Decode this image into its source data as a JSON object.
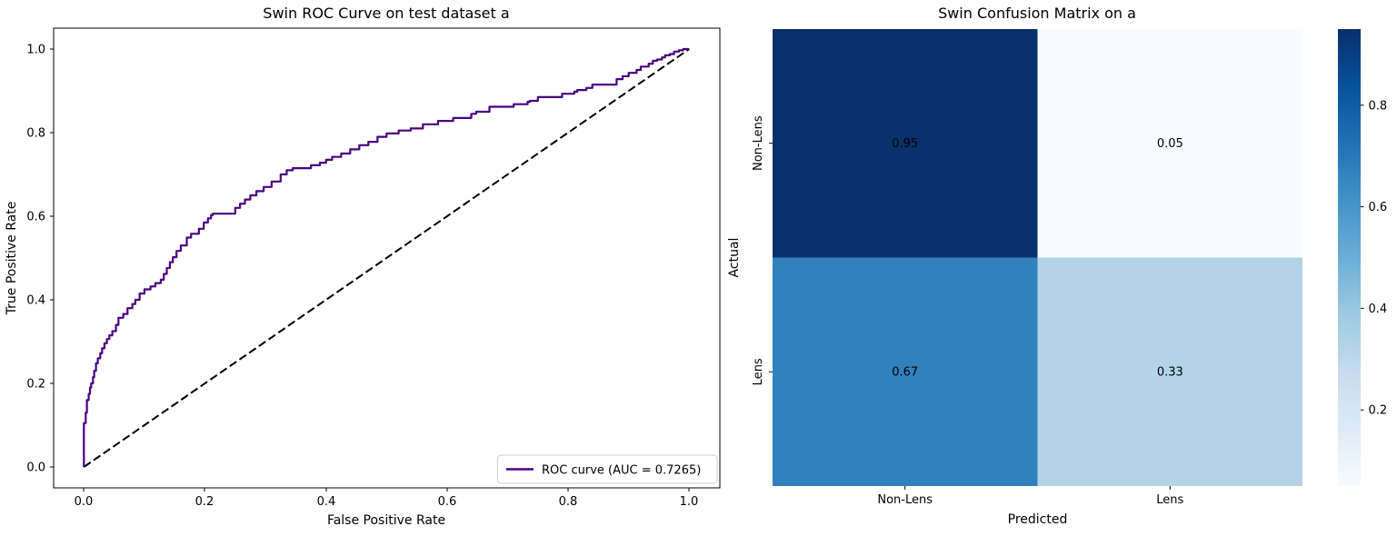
{
  "figure": {
    "background": "#ffffff"
  },
  "roc": {
    "title": "Swin ROC Curve on test dataset a",
    "xlabel": "False Positive Rate",
    "ylabel": "True Positive Rate",
    "x_tick_labels": [
      "0.0",
      "0.2",
      "0.4",
      "0.6",
      "0.8",
      "1.0"
    ],
    "y_tick_labels": [
      "0.0",
      "0.2",
      "0.4",
      "0.6",
      "0.8",
      "1.0"
    ],
    "legend_label": "ROC curve (AUC = 0.7265)",
    "line_color": "#4B0082",
    "diagonal_color": "#000000",
    "legend_border_color": "#cccccc"
  },
  "cm": {
    "title": "Swin Confusion Matrix on a",
    "xlabel": "Predicted",
    "ylabel": "Actual",
    "x_tick_labels": [
      "Non-Lens",
      "Lens"
    ],
    "y_tick_labels": [
      "Non-Lens",
      "Lens"
    ],
    "cell_colors": [
      [
        "#08306b",
        "#f7fbff"
      ],
      [
        "#3181bd",
        "#b2d3e8"
      ]
    ],
    "cell_text_colors": [
      [
        "#ffffff",
        "#1a1a1a"
      ],
      [
        "#ffffff",
        "#1a1a1a"
      ]
    ]
  },
  "colorbar": {
    "tick_labels": [
      "0.8",
      "0.6",
      "0.4",
      "0.2"
    ],
    "tick_values": [
      0.8,
      0.6,
      0.4,
      0.2
    ],
    "vmin": 0.05,
    "vmax": 0.95,
    "gradient_top_to_bottom": [
      "#08306b",
      "#08519c",
      "#2171b5",
      "#4292c6",
      "#6baed6",
      "#9ecae1",
      "#c6dbef",
      "#deebf7",
      "#f7fbff"
    ]
  },
  "chart_data": [
    {
      "type": "line",
      "title": "Swin ROC Curve on test dataset a",
      "xlabel": "False Positive Rate",
      "ylabel": "True Positive Rate",
      "xlim": [
        -0.05,
        1.05
      ],
      "ylim": [
        -0.05,
        1.05
      ],
      "x_ticks": [
        0.0,
        0.2,
        0.4,
        0.6,
        0.8,
        1.0
      ],
      "y_ticks": [
        0.0,
        0.2,
        0.4,
        0.6,
        0.8,
        1.0
      ],
      "grid": false,
      "legend_position": "lower right",
      "auc": 0.7265,
      "series": [
        {
          "name": "ROC curve (AUC = 0.7265)",
          "color": "#4B0082",
          "style": "steps",
          "points": [
            [
              0.0,
              0.0
            ],
            [
              0.0,
              0.09
            ],
            [
              0.003,
              0.105
            ],
            [
              0.005,
              0.13
            ],
            [
              0.005,
              0.146
            ],
            [
              0.008,
              0.16
            ],
            [
              0.01,
              0.175
            ],
            [
              0.012,
              0.19
            ],
            [
              0.015,
              0.2
            ],
            [
              0.017,
              0.215
            ],
            [
              0.02,
              0.23
            ],
            [
              0.023,
              0.248
            ],
            [
              0.027,
              0.26
            ],
            [
              0.03,
              0.272
            ],
            [
              0.034,
              0.284
            ],
            [
              0.038,
              0.296
            ],
            [
              0.042,
              0.306
            ],
            [
              0.047,
              0.315
            ],
            [
              0.053,
              0.325
            ],
            [
              0.057,
              0.34
            ],
            [
              0.065,
              0.357
            ],
            [
              0.072,
              0.366
            ],
            [
              0.08,
              0.38
            ],
            [
              0.085,
              0.39
            ],
            [
              0.092,
              0.4
            ],
            [
              0.1,
              0.415
            ],
            [
              0.11,
              0.425
            ],
            [
              0.118,
              0.432
            ],
            [
              0.127,
              0.44
            ],
            [
              0.132,
              0.448
            ],
            [
              0.137,
              0.462
            ],
            [
              0.142,
              0.476
            ],
            [
              0.147,
              0.49
            ],
            [
              0.153,
              0.502
            ],
            [
              0.16,
              0.517
            ],
            [
              0.17,
              0.53
            ],
            [
              0.177,
              0.549
            ],
            [
              0.19,
              0.558
            ],
            [
              0.198,
              0.57
            ],
            [
              0.205,
              0.585
            ],
            [
              0.21,
              0.595
            ],
            [
              0.213,
              0.603
            ],
            [
              0.25,
              0.606
            ],
            [
              0.258,
              0.62
            ],
            [
              0.266,
              0.63
            ],
            [
              0.275,
              0.64
            ],
            [
              0.285,
              0.65
            ],
            [
              0.297,
              0.66
            ],
            [
              0.31,
              0.67
            ],
            [
              0.325,
              0.683
            ],
            [
              0.335,
              0.7
            ],
            [
              0.345,
              0.71
            ],
            [
              0.375,
              0.715
            ],
            [
              0.39,
              0.722
            ],
            [
              0.4,
              0.728
            ],
            [
              0.41,
              0.735
            ],
            [
              0.425,
              0.742
            ],
            [
              0.44,
              0.75
            ],
            [
              0.455,
              0.76
            ],
            [
              0.47,
              0.77
            ],
            [
              0.485,
              0.778
            ],
            [
              0.5,
              0.79
            ],
            [
              0.52,
              0.798
            ],
            [
              0.54,
              0.805
            ],
            [
              0.56,
              0.81
            ],
            [
              0.585,
              0.82
            ],
            [
              0.61,
              0.828
            ],
            [
              0.64,
              0.835
            ],
            [
              0.648,
              0.845
            ],
            [
              0.67,
              0.85
            ],
            [
              0.71,
              0.862
            ],
            [
              0.733,
              0.868
            ],
            [
              0.737,
              0.874
            ],
            [
              0.75,
              0.876
            ],
            [
              0.79,
              0.885
            ],
            [
              0.81,
              0.893
            ],
            [
              0.815,
              0.898
            ],
            [
              0.83,
              0.902
            ],
            [
              0.84,
              0.907
            ],
            [
              0.88,
              0.915
            ],
            [
              0.89,
              0.928
            ],
            [
              0.9,
              0.935
            ],
            [
              0.913,
              0.943
            ],
            [
              0.92,
              0.95
            ],
            [
              0.933,
              0.958
            ],
            [
              0.94,
              0.965
            ],
            [
              0.947,
              0.972
            ],
            [
              0.955,
              0.975
            ],
            [
              0.96,
              0.98
            ],
            [
              0.968,
              0.985
            ],
            [
              0.975,
              0.988
            ],
            [
              0.983,
              0.994
            ],
            [
              0.99,
              0.997
            ],
            [
              1.0,
              1.0
            ]
          ]
        },
        {
          "name": "chance diagonal",
          "color": "#000000",
          "style": "dashed",
          "points": [
            [
              0.0,
              0.0
            ],
            [
              1.0,
              1.0
            ]
          ]
        }
      ]
    },
    {
      "type": "heatmap",
      "title": "Swin Confusion Matrix on a",
      "xlabel": "Predicted",
      "ylabel": "Actual",
      "x_categories": [
        "Non-Lens",
        "Lens"
      ],
      "y_categories": [
        "Non-Lens",
        "Lens"
      ],
      "values": [
        [
          0.95,
          0.05
        ],
        [
          0.67,
          0.33
        ]
      ],
      "colormap": "Blues",
      "vmin": 0.05,
      "vmax": 0.95,
      "colorbar_ticks": [
        0.2,
        0.4,
        0.6,
        0.8
      ],
      "legend_position": "colorbar right"
    }
  ]
}
